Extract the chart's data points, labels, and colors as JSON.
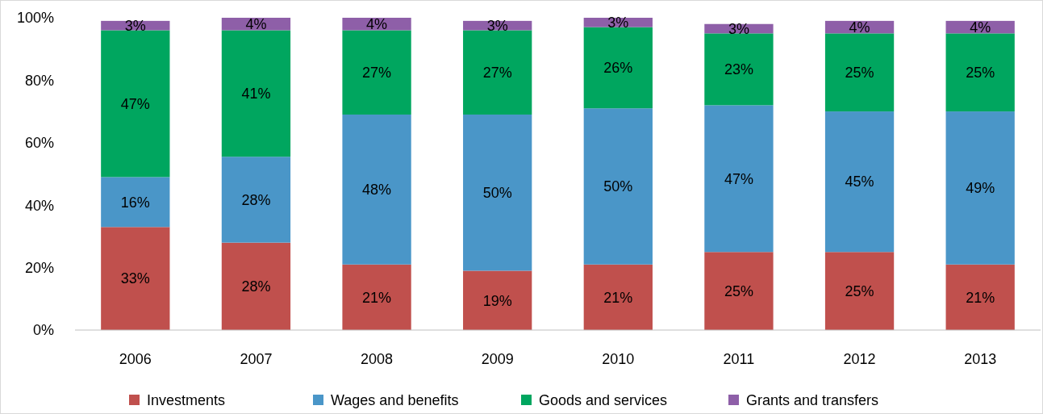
{
  "chart_data": {
    "type": "bar",
    "stacked": true,
    "legend": "bottom",
    "grid": false,
    "categories": [
      "2006",
      "2007",
      "2008",
      "2009",
      "2010",
      "2011",
      "2012",
      "2013"
    ],
    "ylim": [
      0,
      100
    ],
    "yticks": [
      {
        "value": 0,
        "label": "0%"
      },
      {
        "value": 20,
        "label": "20%"
      },
      {
        "value": 40,
        "label": "40%"
      },
      {
        "value": 60,
        "label": "60%"
      },
      {
        "value": 80,
        "label": "80%"
      },
      {
        "value": 100,
        "label": "100%"
      }
    ],
    "series": [
      {
        "name": "Investments",
        "color": "#c0504d",
        "values": [
          33,
          28,
          21,
          19,
          21,
          25,
          25,
          21
        ],
        "value_labels": [
          "33%",
          "28%",
          "21%",
          "19%",
          "21%",
          "25%",
          "25%",
          "21%"
        ]
      },
      {
        "name": "Wages and benefits",
        "color": "#4a96c8",
        "values": [
          16,
          27.5,
          48,
          50,
          50,
          47,
          45,
          49
        ],
        "value_labels": [
          "16%",
          "28%",
          "48%",
          "50%",
          "50%",
          "47%",
          "45%",
          "49%"
        ]
      },
      {
        "name": "Goods and services",
        "color": "#00a65f",
        "values": [
          47,
          40.5,
          27,
          27,
          26,
          23,
          25,
          25
        ],
        "value_labels": [
          "47%",
          "41%",
          "27%",
          "27%",
          "26%",
          "23%",
          "25%",
          "25%"
        ]
      },
      {
        "name": "Grants and transfers",
        "color": "#8e5fa8",
        "values": [
          3,
          4,
          4,
          3,
          3,
          3,
          4,
          4
        ],
        "value_labels": [
          "3%",
          "4%",
          "4%",
          "3%",
          "3%",
          "3%",
          "4%",
          "4%"
        ]
      }
    ]
  }
}
